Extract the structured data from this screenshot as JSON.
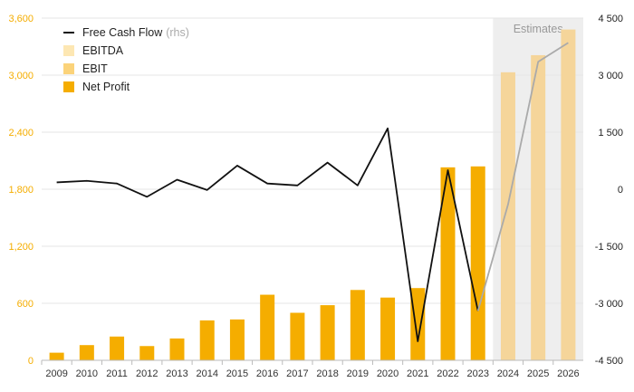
{
  "chart_data": {
    "type": "bar",
    "categories": [
      "2009",
      "2010",
      "2011",
      "2012",
      "2013",
      "2014",
      "2015",
      "2016",
      "2017",
      "2018",
      "2019",
      "2020",
      "2021",
      "2022",
      "2023",
      "2024",
      "2025",
      "2026"
    ],
    "series": [
      {
        "name": "EBITDA",
        "kind": "bar",
        "values": [
          null,
          null,
          null,
          null,
          null,
          null,
          null,
          null,
          null,
          null,
          null,
          null,
          null,
          null,
          null,
          null,
          null,
          null
        ]
      },
      {
        "name": "EBIT",
        "kind": "bar",
        "values": [
          null,
          null,
          null,
          null,
          null,
          null,
          null,
          null,
          null,
          null,
          null,
          null,
          null,
          null,
          null,
          3030,
          3210,
          3480
        ]
      },
      {
        "name": "Net Profit",
        "kind": "bar",
        "values": [
          80,
          160,
          250,
          150,
          230,
          420,
          430,
          690,
          500,
          580,
          740,
          660,
          760,
          2030,
          2040,
          null,
          null,
          null
        ]
      },
      {
        "name": "Free Cash Flow",
        "name_note": "(rhs)",
        "kind": "line",
        "axis": "right",
        "values": [
          180,
          220,
          150,
          -200,
          250,
          -20,
          620,
          150,
          100,
          700,
          100,
          1600,
          -4000,
          500,
          -3200,
          -400,
          3350,
          3850
        ]
      }
    ],
    "ylim_left": [
      0,
      3600
    ],
    "yticks_left": [
      "0",
      "600",
      "1,200",
      "1,800",
      "2,400",
      "3,000",
      "3,600"
    ],
    "yticks_left_values": [
      0,
      600,
      1200,
      1800,
      2400,
      3000,
      3600
    ],
    "ylim_right": [
      -4500,
      4500
    ],
    "yticks_right": [
      "-4 500",
      "-3 000",
      "-1 500",
      "0",
      "1 500",
      "3 000",
      "4 500"
    ],
    "yticks_right_values": [
      -4500,
      -3000,
      -1500,
      0,
      1500,
      3000,
      4500
    ],
    "estimates_label": "Estimates",
    "estimates_from": "2024",
    "colors": {
      "net_profit": "#f5ad00",
      "ebit": "#fbd37a",
      "ebitda": "#fde7b3",
      "estimate_bar": "#f5d59a",
      "fcf_line": "#111111",
      "fcf_line_estimate": "#aaaaaa",
      "estimate_shade": "#eeeeee",
      "left_tick": "#f5ad00",
      "right_tick": "#222222",
      "grid": "#e6e6e6"
    },
    "grid": true,
    "legend_position": "top-left"
  },
  "legend": {
    "items": [
      {
        "label": "Free Cash Flow",
        "note": "(rhs)",
        "type": "line",
        "color": "#111111"
      },
      {
        "label": "EBITDA",
        "type": "swatch",
        "color": "#fde7b3"
      },
      {
        "label": "EBIT",
        "type": "swatch",
        "color": "#fbd37a"
      },
      {
        "label": "Net Profit",
        "type": "swatch",
        "color": "#f5ad00"
      }
    ]
  }
}
